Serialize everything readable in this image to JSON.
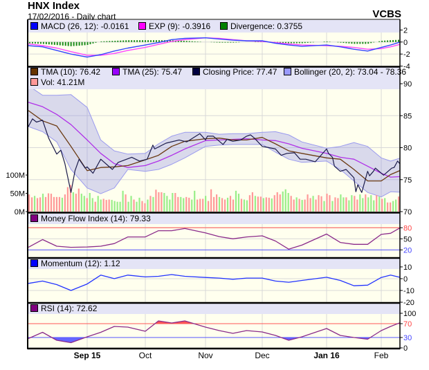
{
  "header": {
    "title": "HNX Index",
    "subtitle": "17/02/2016 - Daily chart",
    "brand": "VCBS"
  },
  "legends": {
    "macd": [
      {
        "label": "MACD (26, 12): -0.0161",
        "color": "#0000ff"
      },
      {
        "label": "EXP (9): -0.3916",
        "color": "#ff00ff"
      },
      {
        "label": "Divergence: 0.3755",
        "color": "#008000"
      }
    ],
    "price": [
      {
        "label": "TMA (10): 76.42",
        "color": "#663300"
      },
      {
        "label": "TMA (25): 75.47",
        "color": "#9900ff"
      },
      {
        "label": "Closing Price: 77.47",
        "color": "#000040"
      },
      {
        "label": "Bollinger (20, 2): 73.04 - 78.36",
        "color": "#9999ff"
      },
      {
        "label": "Vol: 41.21M",
        "color": "#ff9999"
      }
    ],
    "mfi": [
      {
        "label": "Money Flow Index (14): 79.33",
        "color": "#800080"
      }
    ],
    "momentum": [
      {
        "label": "Momentum (12): 1.12",
        "color": "#0000ff"
      }
    ],
    "rsi": [
      {
        "label": "RSI (14): 72.62",
        "color": "#800080"
      }
    ]
  },
  "chart_data": {
    "type": "line",
    "title": "HNX Index",
    "x_range": [
      "2015-08-03",
      "2016-02-17"
    ],
    "x_ticks": [
      {
        "label": "Sep 15",
        "date": "2015-09-01",
        "bold": true
      },
      {
        "label": "Oct",
        "date": "2015-10-01",
        "bold": false
      },
      {
        "label": "Nov",
        "date": "2015-11-02",
        "bold": false
      },
      {
        "label": "Dec",
        "date": "2015-12-01",
        "bold": false
      },
      {
        "label": "Jan 16",
        "date": "2016-01-04",
        "bold": true
      },
      {
        "label": "Feb",
        "date": "2016-02-01",
        "bold": false
      }
    ],
    "grid": true,
    "sample_dates": [
      "2015-08-03",
      "2015-08-10",
      "2015-08-17",
      "2015-08-24",
      "2015-09-01",
      "2015-09-08",
      "2015-09-15",
      "2015-09-22",
      "2015-10-01",
      "2015-10-08",
      "2015-10-15",
      "2015-10-22",
      "2015-11-02",
      "2015-11-09",
      "2015-11-16",
      "2015-11-23",
      "2015-12-01",
      "2015-12-08",
      "2015-12-15",
      "2015-12-22",
      "2016-01-04",
      "2016-01-11",
      "2016-01-18",
      "2016-01-25",
      "2016-02-01",
      "2016-02-09",
      "2016-02-17"
    ],
    "macd": {
      "ylim": [
        -4.05,
        3.65
      ],
      "ticks": [
        2,
        0,
        -2,
        -4
      ],
      "macd": [
        -0.6,
        -0.8,
        -1.4,
        -2.0,
        -2.5,
        -2.1,
        -1.5,
        -1.0,
        -0.5,
        -0.1,
        0.4,
        0.6,
        0.7,
        0.5,
        0.3,
        0.2,
        0.2,
        -0.2,
        -0.5,
        -0.7,
        -0.5,
        -0.8,
        -1.2,
        -1.5,
        -0.9,
        -0.5,
        -0.0161
      ],
      "signal": [
        -0.3,
        -0.6,
        -1.0,
        -1.6,
        -2.2,
        -2.2,
        -1.9,
        -1.4,
        -0.9,
        -0.4,
        0.1,
        0.4,
        0.7,
        0.6,
        0.4,
        0.2,
        0.1,
        -0.1,
        -0.3,
        -0.5,
        -0.6,
        -0.7,
        -0.9,
        -1.2,
        -1.1,
        -0.8,
        -0.3916
      ],
      "divergence": [
        -0.2,
        -0.3,
        -0.5,
        -0.7,
        -0.5,
        0.1,
        0.2,
        0.3,
        0.3,
        0.3,
        0.3,
        0.2,
        0,
        -0.1,
        -0.1,
        0,
        0.1,
        -0.1,
        -0.2,
        -0.2,
        0.1,
        -0.1,
        -0.3,
        -0.3,
        0.2,
        0.3,
        0.3755
      ]
    },
    "price": {
      "ylim": [
        70,
        92.6
      ],
      "ticks": [
        90,
        85,
        80,
        75,
        70
      ],
      "close": {
        "dates": [
          "2015-08-03",
          "2015-08-05",
          "2015-08-07",
          "2015-08-10",
          "2015-08-13",
          "2015-08-17",
          "2015-08-19",
          "2015-08-21",
          "2015-08-24",
          "2015-08-26",
          "2015-08-28",
          "2015-08-31",
          "2015-09-01",
          "2015-09-04",
          "2015-09-08",
          "2015-09-14",
          "2015-09-17",
          "2015-09-24",
          "2015-09-28",
          "2015-10-02",
          "2015-10-05",
          "2015-10-06",
          "2015-10-12",
          "2015-10-19",
          "2015-10-23",
          "2015-10-30",
          "2015-11-02",
          "2015-11-03",
          "2015-11-06",
          "2015-11-11",
          "2015-11-13",
          "2015-11-16",
          "2015-11-20",
          "2015-11-23",
          "2015-11-25",
          "2015-11-27",
          "2015-12-01",
          "2015-12-03",
          "2015-12-08",
          "2015-12-11",
          "2015-12-14",
          "2015-12-18",
          "2015-12-21",
          "2015-12-24",
          "2015-12-29",
          "2016-01-04",
          "2016-01-05",
          "2016-01-07",
          "2016-01-08",
          "2016-01-11",
          "2016-01-14",
          "2016-01-18",
          "2016-01-19",
          "2016-01-20",
          "2016-01-22",
          "2016-01-25",
          "2016-01-26",
          "2016-01-28",
          "2016-01-29",
          "2016-02-03",
          "2016-02-10",
          "2016-02-12",
          "2016-02-15",
          "2016-02-17"
        ],
        "values": [
          83.3,
          84.5,
          84.0,
          84.3,
          81.5,
          79.0,
          79.6,
          77.5,
          73.0,
          76.4,
          78.2,
          76.8,
          77.0,
          76.0,
          78.2,
          76.6,
          77.7,
          78.5,
          77.9,
          78.2,
          80.4,
          79.8,
          80.7,
          81.2,
          80.9,
          82.2,
          81.2,
          81.8,
          81.8,
          80.5,
          81.3,
          81.0,
          81.2,
          81.8,
          82.0,
          81.5,
          80.2,
          80.1,
          79.8,
          78.8,
          79.1,
          79.2,
          78.2,
          78.2,
          77.8,
          79.8,
          79.1,
          78.5,
          77.1,
          76.3,
          76.6,
          75.3,
          73.1,
          74.2,
          73.0,
          76.3,
          75.6,
          76.3,
          76.8,
          75.7,
          76.8,
          76.9,
          77.9,
          77.47
        ]
      },
      "tma10": [
        85.8,
        84.2,
        83.4,
        80.2,
        76.4,
        76.9,
        77.0,
        77.2,
        78.1,
        78.8,
        80.2,
        81.0,
        81.4,
        81.5,
        81.2,
        81.2,
        81.6,
        80.6,
        79.5,
        79.1,
        78.4,
        78.2,
        76.6,
        74.8,
        74.8,
        75.8,
        76.42
      ],
      "tma25": [
        87.1,
        86.4,
        85.2,
        83.6,
        81.2,
        79.1,
        77.5,
        76.9,
        77.2,
        77.9,
        78.8,
        79.8,
        81.1,
        81.2,
        81.3,
        81.4,
        81.2,
        81.1,
        80.6,
        79.9,
        79.1,
        78.5,
        78.2,
        77.1,
        76.0,
        75.4,
        75.47
      ],
      "bollinger_upper": [
        89.7,
        88.2,
        88.2,
        88.3,
        86.3,
        81.2,
        79.5,
        79.0,
        79.1,
        80.6,
        81.8,
        82.4,
        82.4,
        82.1,
        82.2,
        82.2,
        82.4,
        82.5,
        82.0,
        80.9,
        79.9,
        80.2,
        80.8,
        80.2,
        78.4,
        77.9,
        78.36
      ],
      "bollinger_lower": [
        83.3,
        82.5,
        80.9,
        76.6,
        73.7,
        72.8,
        73.7,
        76.6,
        76.3,
        76.6,
        77.4,
        78.4,
        80.2,
        80.4,
        80.5,
        80.5,
        80.5,
        79.3,
        78.2,
        77.7,
        77.9,
        76.6,
        74.8,
        73.0,
        72.3,
        73.1,
        73.04
      ],
      "volume": {
        "ylim": [
          0,
          395
        ],
        "tick_labels": [
          "100M",
          "50M",
          "0M"
        ],
        "tick_values": [
          100,
          50,
          0
        ],
        "values_m": [
          47,
          39,
          43,
          37,
          39,
          49,
          40,
          50,
          49,
          40,
          40,
          40,
          38,
          47,
          67,
          73,
          53,
          49,
          63,
          49,
          43,
          37,
          51,
          37,
          27,
          43,
          33,
          35,
          32,
          33,
          32,
          29,
          27,
          27,
          57,
          47,
          27,
          43,
          33,
          27,
          38,
          29,
          23,
          33,
          43,
          40,
          60,
          53,
          53,
          51,
          43,
          33,
          51,
          51,
          40,
          40,
          37,
          40,
          38,
          33,
          57,
          33,
          35,
          35,
          43,
          29,
          61,
          40,
          47,
          40,
          37,
          33,
          38,
          43,
          33,
          57,
          49,
          35,
          33,
          31,
          45,
          53,
          43,
          41,
          41,
          37,
          39,
          38,
          36,
          45,
          53,
          47,
          55,
          61,
          51,
          43,
          33,
          39,
          35,
          32,
          33,
          47,
          37,
          43,
          33,
          45,
          42,
          29,
          49,
          45,
          29,
          39,
          37,
          47,
          39,
          39,
          31,
          45,
          43,
          33,
          47,
          37,
          47,
          39,
          45,
          31,
          45,
          41,
          35,
          37,
          25,
          25,
          29,
          33,
          41.21
        ],
        "up_down": "ddudduddddddudddudduuduuduuddduuuuuduuduuddududdduuuudduudduudddudddduddudduuduudduddudduddduuuddududdduddduddudduuduudduuduuudududduuduudddduudu",
        "up_color": "#99ee88",
        "down_color": "#ff9999"
      }
    },
    "mfi": {
      "ylim": [
        0,
        118
      ],
      "ticks": [
        80,
        50,
        20
      ],
      "overbought": 80,
      "oversold": 20,
      "values": [
        27,
        48,
        30,
        27,
        28,
        30,
        37,
        55,
        55,
        72,
        72,
        78,
        66,
        56,
        50,
        55,
        58,
        44,
        22,
        33,
        63,
        40,
        35,
        35,
        62,
        65,
        79.33
      ]
    },
    "momentum": {
      "ylim": [
        -20,
        17
      ],
      "ticks": [
        10,
        0,
        -10,
        -20
      ],
      "values": [
        -4,
        -2,
        -5,
        -10,
        -4.5,
        3,
        0,
        3,
        1.5,
        2,
        3.5,
        2,
        1,
        0.5,
        -0.5,
        0.5,
        0.5,
        -2,
        -3,
        -1.5,
        1.2,
        -1.5,
        -6,
        -5.5,
        1,
        3,
        1.12
      ]
    },
    "rsi": {
      "ylim": [
        0,
        128
      ],
      "ticks": [
        100,
        70,
        30,
        0
      ],
      "overbought": 70,
      "oversold": 30,
      "values": [
        27,
        45,
        22,
        15,
        32,
        45,
        62,
        60,
        48,
        78,
        72,
        78,
        60,
        50,
        42,
        50,
        46,
        36,
        22,
        32,
        56,
        36,
        30,
        25,
        50,
        62,
        72.62
      ]
    }
  }
}
